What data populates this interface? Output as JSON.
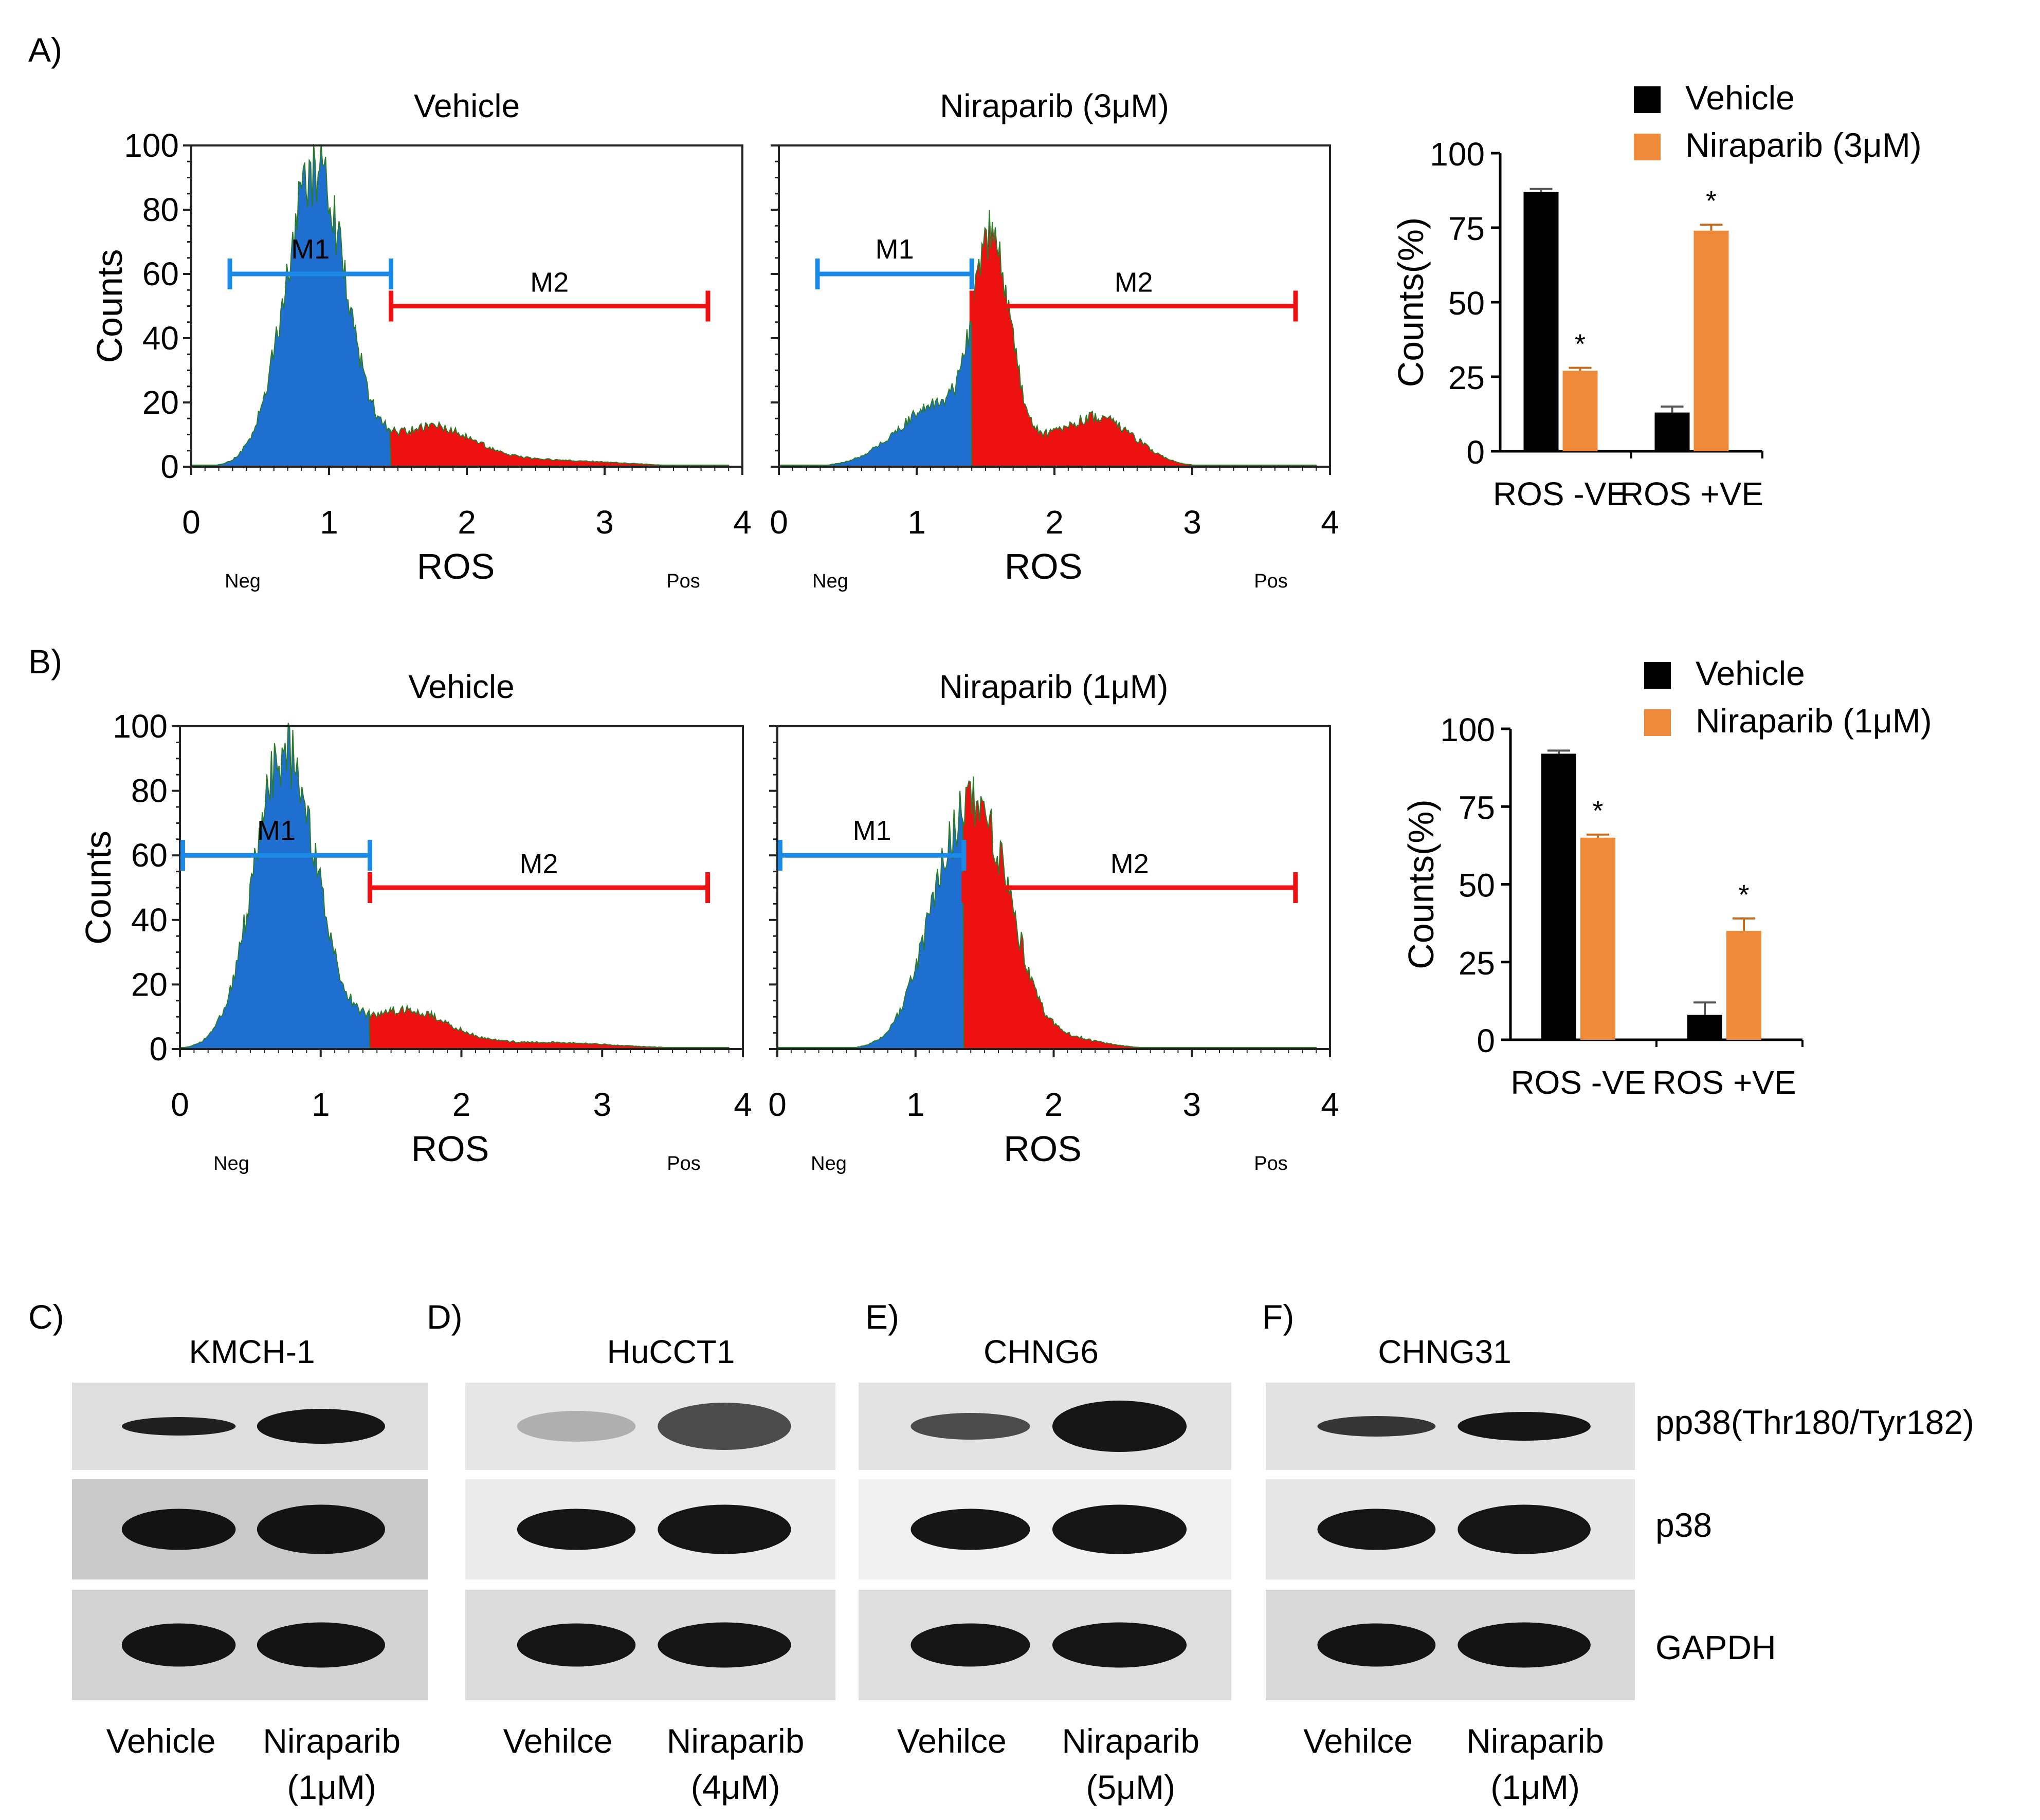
{
  "panels": {
    "A": {
      "label": "A)",
      "flow": [
        {
          "title": "Vehicle",
          "m1": "M1",
          "m2": "M2",
          "split": 1.45,
          "peak": 0.9,
          "tail": "low"
        },
        {
          "title": "Niraparib (3μM)",
          "m1": "M1",
          "m2": "M2",
          "split": 1.4,
          "peak": 1.55,
          "tail": "high"
        }
      ],
      "bar_chart_key": 0
    },
    "B": {
      "label": "B)",
      "flow": [
        {
          "title": "Vehicle",
          "m1": "M1",
          "m2": "M2",
          "split": 1.35,
          "peak": 0.75,
          "tail": "low"
        },
        {
          "title": "Niraparib (1μM)",
          "m1": "M1",
          "m2": "M2",
          "split": 1.35,
          "peak": 1.35,
          "tail": "mid"
        }
      ],
      "bar_chart_key": 1
    },
    "flow_common": {
      "ylabel": "Counts",
      "xlabel": "ROS",
      "neg": "Neg",
      "pos": "Pos",
      "yticks": [
        "0",
        "20",
        "40",
        "60",
        "80",
        "100"
      ],
      "xticks": [
        "0",
        "1",
        "2",
        "3",
        "4"
      ],
      "colors": {
        "negative": "#1f6fd1",
        "positive": "#ee1111",
        "gate_m1": "#1a8ae6",
        "gate_m2": "#ee1111",
        "outline": "#2a7a2a"
      }
    },
    "blots": {
      "cells": [
        {
          "label": "C)",
          "name": "KMCH-1",
          "lanes": [
            "Vehicle",
            "Niraparib",
            "(1μM)"
          ]
        },
        {
          "label": "D)",
          "name": "HuCCT1",
          "lanes": [
            "Vehilce",
            "Niraparib",
            "(4μM)"
          ]
        },
        {
          "label": "E)",
          "name": "CHNG6",
          "lanes": [
            "Vehilce",
            "Niraparib",
            "(5μM)"
          ]
        },
        {
          "label": "F)",
          "name": "CHNG31",
          "lanes": [
            "Vehilce",
            "Niraparib",
            "(1μM)"
          ]
        }
      ],
      "proteins": [
        "pp38(Thr180/Tyr182)",
        "p38",
        "GAPDH"
      ]
    }
  },
  "chart_data": [
    {
      "type": "bar",
      "title": "",
      "ylabel": "Counts(%)",
      "categories": [
        "ROS -VE",
        "ROS +VE"
      ],
      "series": [
        {
          "name": "Vehicle",
          "values": [
            87,
            13
          ],
          "errors": [
            1,
            2
          ],
          "color": "#000000"
        },
        {
          "name": "Niraparib (3μM)",
          "values": [
            27,
            74
          ],
          "errors": [
            1,
            2
          ],
          "color": "#ee8a3a"
        }
      ],
      "significance": [
        "",
        "*"
      ],
      "sig_marks": [
        [
          false,
          true
        ],
        [
          false,
          true
        ]
      ],
      "yticks": [
        "0",
        "25",
        "50",
        "75",
        "100"
      ],
      "ylim": [
        0,
        100
      ]
    },
    {
      "type": "bar",
      "title": "",
      "ylabel": "Counts(%)",
      "categories": [
        "ROS -VE",
        "ROS +VE"
      ],
      "series": [
        {
          "name": "Vehicle",
          "values": [
            92,
            8
          ],
          "errors": [
            1,
            4
          ],
          "color": "#000000"
        },
        {
          "name": "Niraparib (1μM)",
          "values": [
            65,
            35
          ],
          "errors": [
            1,
            4
          ],
          "color": "#ee8a3a"
        }
      ],
      "sig_marks": [
        [
          false,
          true
        ],
        [
          false,
          true
        ]
      ],
      "yticks": [
        "0",
        "25",
        "50",
        "75",
        "100"
      ],
      "ylim": [
        0,
        100
      ]
    }
  ]
}
